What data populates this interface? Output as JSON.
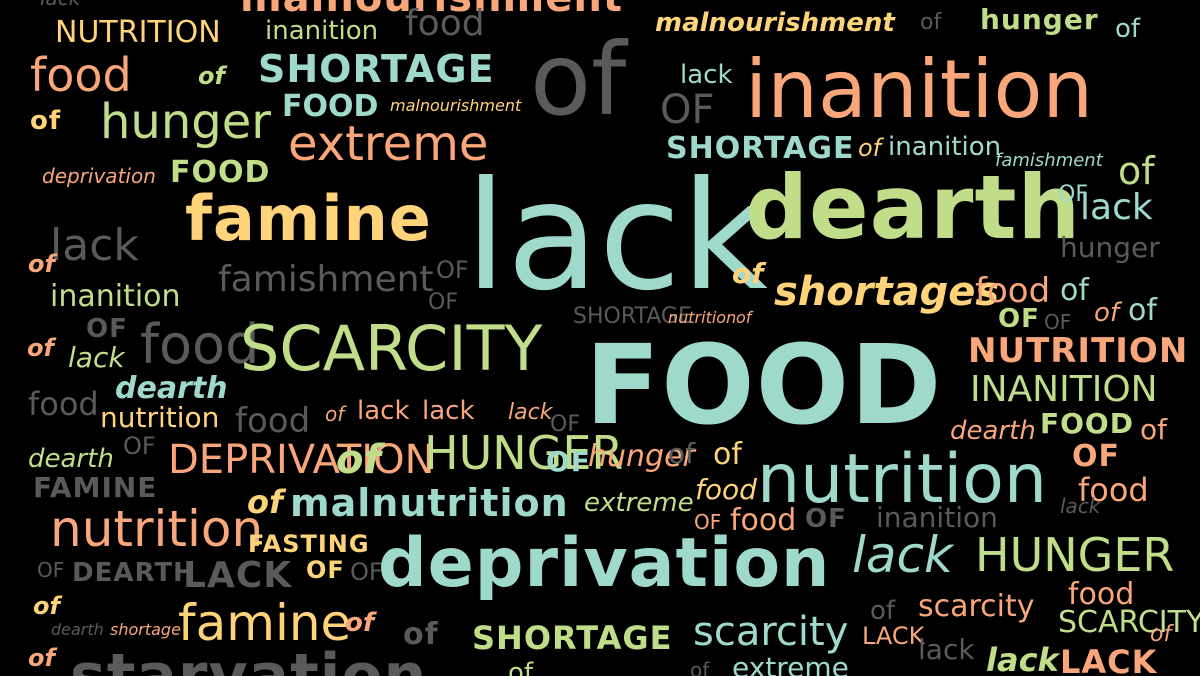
{
  "background": "#000000",
  "palette": {
    "salmon": "#f9a67b",
    "mint": "#9fd9cb",
    "lime": "#c0dd8a",
    "yellow": "#ffd37a",
    "gray": "#5a5a5a"
  },
  "words": [
    {
      "text": "lack",
      "color": "gray"
    },
    {
      "text": "malnourishment",
      "color": "salmon"
    },
    {
      "text": "NUTRITION",
      "color": "yellow"
    },
    {
      "text": "inanition",
      "color": "lime"
    },
    {
      "text": "food",
      "color": "gray"
    },
    {
      "text": "malnourishment",
      "color": "yellow"
    },
    {
      "text": "of",
      "color": "gray"
    },
    {
      "text": "hunger",
      "color": "lime"
    },
    {
      "text": "of",
      "color": "mint"
    },
    {
      "text": "food",
      "color": "salmon"
    },
    {
      "text": "of",
      "color": "lime"
    },
    {
      "text": "SHORTAGE",
      "color": "mint"
    },
    {
      "text": "of",
      "color": "gray"
    },
    {
      "text": "lack",
      "color": "mint"
    },
    {
      "text": "inanition",
      "color": "salmon"
    },
    {
      "text": "of",
      "color": "yellow"
    },
    {
      "text": "hunger",
      "color": "lime"
    },
    {
      "text": "FOOD",
      "color": "mint"
    },
    {
      "text": "malnourishment",
      "color": "yellow"
    },
    {
      "text": "OF",
      "color": "gray"
    },
    {
      "text": "extreme",
      "color": "salmon"
    },
    {
      "text": "SHORTAGE",
      "color": "mint"
    },
    {
      "text": "of",
      "color": "yellow"
    },
    {
      "text": "inanition",
      "color": "mint"
    },
    {
      "text": "famishment",
      "color": "mint"
    },
    {
      "text": "deprivation",
      "color": "salmon"
    },
    {
      "text": "FOOD",
      "color": "lime"
    },
    {
      "text": "of",
      "color": "lime"
    },
    {
      "text": "famine",
      "color": "yellow"
    },
    {
      "text": "lack",
      "color": "mint"
    },
    {
      "text": "dearth",
      "color": "lime"
    },
    {
      "text": "OF",
      "color": "mint"
    },
    {
      "text": "lack",
      "color": "mint"
    },
    {
      "text": "lack",
      "color": "gray"
    },
    {
      "text": "hunger",
      "color": "gray"
    },
    {
      "text": "of",
      "color": "salmon"
    },
    {
      "text": "famishment",
      "color": "gray"
    },
    {
      "text": "OF",
      "color": "gray"
    },
    {
      "text": "of",
      "color": "yellow"
    },
    {
      "text": "inanition",
      "color": "lime"
    },
    {
      "text": "OF",
      "color": "gray"
    },
    {
      "text": "shortages",
      "color": "yellow"
    },
    {
      "text": "food",
      "color": "salmon"
    },
    {
      "text": "of",
      "color": "mint"
    },
    {
      "text": "OF",
      "color": "lime"
    },
    {
      "text": "OF",
      "color": "gray"
    },
    {
      "text": "of",
      "color": "salmon"
    },
    {
      "text": "of",
      "color": "mint"
    },
    {
      "text": "SHORTAGE",
      "color": "gray"
    },
    {
      "text": "nutrition",
      "color": "salmon"
    },
    {
      "text": "of",
      "color": "salmon"
    },
    {
      "text": "OF",
      "color": "gray"
    },
    {
      "text": "food",
      "color": "gray"
    },
    {
      "text": "SCARCITY",
      "color": "lime"
    },
    {
      "text": "FOOD",
      "color": "mint"
    },
    {
      "text": "NUTRITION",
      "color": "salmon"
    },
    {
      "text": "of",
      "color": "salmon"
    },
    {
      "text": "lack",
      "color": "lime"
    },
    {
      "text": "dearth",
      "color": "mint"
    },
    {
      "text": "INANITION",
      "color": "lime"
    },
    {
      "text": "food",
      "color": "gray"
    },
    {
      "text": "nutrition",
      "color": "yellow"
    },
    {
      "text": "food",
      "color": "gray"
    },
    {
      "text": "of",
      "color": "salmon"
    },
    {
      "text": "lack",
      "color": "salmon"
    },
    {
      "text": "lack",
      "color": "salmon"
    },
    {
      "text": "lack",
      "color": "salmon"
    },
    {
      "text": "OF",
      "color": "gray"
    },
    {
      "text": "dearth",
      "color": "salmon"
    },
    {
      "text": "FOOD",
      "color": "lime"
    },
    {
      "text": "of",
      "color": "salmon"
    },
    {
      "text": "dearth",
      "color": "lime"
    },
    {
      "text": "OF",
      "color": "gray"
    },
    {
      "text": "DEPRIVATION",
      "color": "salmon"
    },
    {
      "text": "of",
      "color": "lime"
    },
    {
      "text": "HUNGER",
      "color": "lime"
    },
    {
      "text": "OF",
      "color": "mint"
    },
    {
      "text": "hunger",
      "color": "salmon"
    },
    {
      "text": "of",
      "color": "gray"
    },
    {
      "text": "of",
      "color": "yellow"
    },
    {
      "text": "OF",
      "color": "salmon"
    },
    {
      "text": "FAMINE",
      "color": "gray"
    },
    {
      "text": "nutrition",
      "color": "mint"
    },
    {
      "text": "food",
      "color": "salmon"
    },
    {
      "text": "of",
      "color": "yellow"
    },
    {
      "text": "malnutrition",
      "color": "mint"
    },
    {
      "text": "extreme",
      "color": "lime"
    },
    {
      "text": "food",
      "color": "yellow"
    },
    {
      "text": "lack",
      "color": "gray"
    },
    {
      "text": "nutrition",
      "color": "salmon"
    },
    {
      "text": "OF",
      "color": "salmon"
    },
    {
      "text": "food",
      "color": "salmon"
    },
    {
      "text": "OF",
      "color": "gray"
    },
    {
      "text": "inanition",
      "color": "gray"
    },
    {
      "text": "FASTING",
      "color": "yellow"
    },
    {
      "text": "lack",
      "color": "mint"
    },
    {
      "text": "HUNGER",
      "color": "lime"
    },
    {
      "text": "OF",
      "color": "gray"
    },
    {
      "text": "DEARTH",
      "color": "gray"
    },
    {
      "text": "LACK",
      "color": "gray"
    },
    {
      "text": "OF",
      "color": "yellow"
    },
    {
      "text": "OF",
      "color": "gray"
    },
    {
      "text": "deprivation",
      "color": "mint"
    },
    {
      "text": "of",
      "color": "yellow"
    },
    {
      "text": "food",
      "color": "salmon"
    },
    {
      "text": "scarcity",
      "color": "salmon"
    },
    {
      "text": "of",
      "color": "gray"
    },
    {
      "text": "SCARCITY",
      "color": "lime"
    },
    {
      "text": "dearth",
      "color": "gray"
    },
    {
      "text": "shortage",
      "color": "salmon"
    },
    {
      "text": "famine",
      "color": "yellow"
    },
    {
      "text": "of",
      "color": "salmon"
    },
    {
      "text": "of",
      "color": "gray"
    },
    {
      "text": "SHORTAGE",
      "color": "lime"
    },
    {
      "text": "scarcity",
      "color": "mint"
    },
    {
      "text": "LACK",
      "color": "salmon"
    },
    {
      "text": "lack",
      "color": "gray"
    },
    {
      "text": "of",
      "color": "salmon"
    },
    {
      "text": "of",
      "color": "salmon"
    },
    {
      "text": "starvation",
      "color": "gray"
    },
    {
      "text": "extreme",
      "color": "mint"
    },
    {
      "text": "of",
      "color": "gray"
    },
    {
      "text": "lack",
      "color": "lime"
    },
    {
      "text": "LACK",
      "color": "salmon"
    },
    {
      "text": "of",
      "color": "lime"
    }
  ]
}
